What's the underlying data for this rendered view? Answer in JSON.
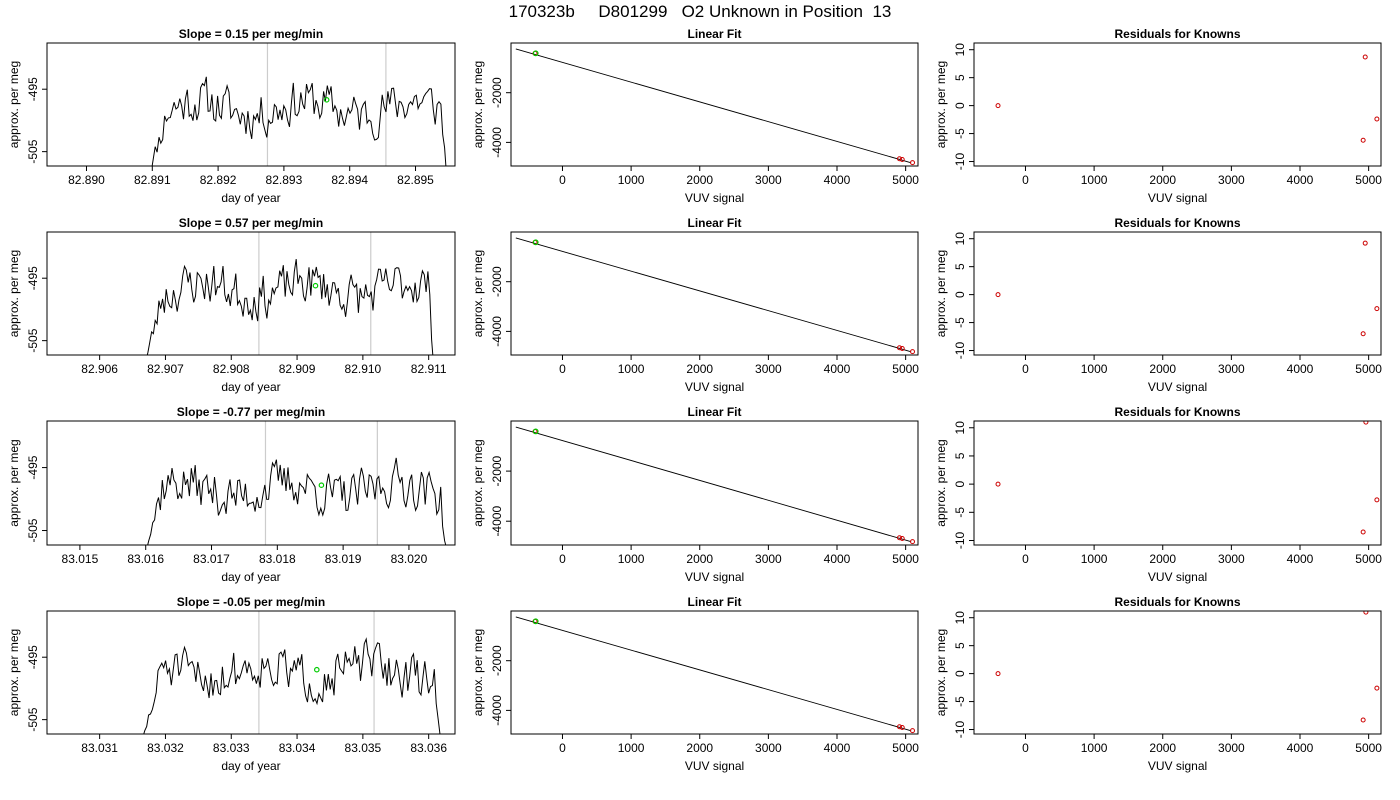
{
  "figure": {
    "title": "170323b     D801299   O2 Unknown in Position  13"
  },
  "colors": {
    "trace": "#000000",
    "boundary": "#cccccc",
    "unknown_point": "#00cc00",
    "standard_point": "#cc0000",
    "frame": "#000000"
  },
  "chart_data": [
    {
      "type": "line",
      "row": 1,
      "col": 1,
      "title": "Slope =  0.15  per meg/min",
      "xlabel": "day of year",
      "ylabel": "approx. per meg",
      "xlim": [
        82.8894,
        82.8956
      ],
      "ylim": [
        -507.3,
        -487.6
      ],
      "xticks": [
        82.89,
        82.891,
        82.892,
        82.893,
        82.894,
        82.895
      ],
      "xtick_labels": [
        "82.890",
        "82.891",
        "82.892",
        "82.893",
        "82.894",
        "82.895"
      ],
      "yticks": [
        -495,
        -505
      ],
      "ytick_labels": [
        "-495",
        "-505"
      ],
      "x_start": 82.8909,
      "x_end": 82.8955,
      "n_points": 160,
      "baseline": -498.0,
      "seed": 11,
      "vlines": [
        82.89275,
        82.89455
      ],
      "highlight_point": {
        "x": 82.89365,
        "y": -496.7
      }
    },
    {
      "type": "line",
      "row": 2,
      "col": 1,
      "title": "Slope =  0.57  per meg/min",
      "xlabel": "day of year",
      "ylabel": "approx. per meg",
      "xlim": [
        82.9052,
        82.9114
      ],
      "ylim": [
        -507.3,
        -487.6
      ],
      "xticks": [
        82.906,
        82.907,
        82.908,
        82.909,
        82.91,
        82.911
      ],
      "xtick_labels": [
        "82.906",
        "82.907",
        "82.908",
        "82.909",
        "82.910",
        "82.911"
      ],
      "yticks": [
        -495,
        -505
      ],
      "ytick_labels": [
        "-495",
        "-505"
      ],
      "x_start": 82.90665,
      "x_end": 82.9111,
      "n_points": 160,
      "baseline": -496.8,
      "seed": 23,
      "vlines": [
        82.90842,
        82.91012
      ],
      "highlight_point": {
        "x": 82.90928,
        "y": -496.2
      }
    },
    {
      "type": "line",
      "row": 3,
      "col": 1,
      "title": "Slope =  -0.77  per meg/min",
      "xlabel": "day of year",
      "ylabel": "approx. per meg",
      "xlim": [
        83.0145,
        83.0207
      ],
      "ylim": [
        -507.3,
        -487.6
      ],
      "xticks": [
        83.015,
        83.016,
        83.017,
        83.018,
        83.019,
        83.02
      ],
      "xtick_labels": [
        "83.015",
        "83.016",
        "83.017",
        "83.018",
        "83.019",
        "83.020"
      ],
      "yticks": [
        -495,
        -505
      ],
      "ytick_labels": [
        "-495",
        "-505"
      ],
      "x_start": 83.0159,
      "x_end": 83.0206,
      "n_points": 160,
      "baseline": -498.5,
      "seed": 37,
      "vlines": [
        83.01782,
        83.01952
      ],
      "highlight_point": {
        "x": 83.01867,
        "y": -497.8
      }
    },
    {
      "type": "line",
      "row": 4,
      "col": 1,
      "title": "Slope =  -0.05  per meg/min",
      "xlabel": "day of year",
      "ylabel": "approx. per meg",
      "xlim": [
        83.0302,
        83.0364
      ],
      "ylim": [
        -507.3,
        -487.6
      ],
      "xticks": [
        83.031,
        83.032,
        83.033,
        83.034,
        83.035,
        83.036
      ],
      "xtick_labels": [
        "83.031",
        "83.032",
        "83.033",
        "83.034",
        "83.035",
        "83.036"
      ],
      "yticks": [
        -495,
        -505
      ],
      "ytick_labels": [
        "-495",
        "-505"
      ],
      "x_start": 83.0316,
      "x_end": 83.0362,
      "n_points": 160,
      "baseline": -497.3,
      "seed": 51,
      "vlines": [
        83.03342,
        83.03517
      ],
      "highlight_point": {
        "x": 83.0343,
        "y": -497.0
      }
    },
    {
      "type": "scatter",
      "row": 1,
      "col": 2,
      "title": "Linear Fit",
      "xlabel": "VUV signal",
      "ylabel": "approx. per meg",
      "xlim": [
        -750,
        5180
      ],
      "ylim": [
        -4950,
        0
      ],
      "xticks": [
        0,
        1000,
        2000,
        3000,
        4000,
        5000
      ],
      "xtick_labels": [
        "0",
        "1000",
        "2000",
        "3000",
        "4000",
        "5000"
      ],
      "yticks": [
        -2000,
        -4000
      ],
      "ytick_labels": [
        "-2000",
        "-4000"
      ],
      "fit_line": [
        [
          -680,
          -240
        ],
        [
          5080,
          -4820
        ]
      ],
      "standards": [
        [
          -400,
          -420
        ],
        [
          4910,
          -4660
        ],
        [
          4950,
          -4690
        ],
        [
          5100,
          -4815
        ]
      ],
      "unknown": [
        [
          -390,
          -415
        ]
      ]
    },
    {
      "type": "scatter",
      "row": 2,
      "col": 2,
      "title": "Linear Fit",
      "xlabel": "VUV signal",
      "ylabel": "approx. per meg",
      "xlim": [
        -750,
        5180
      ],
      "ylim": [
        -4950,
        0
      ],
      "xticks": [
        0,
        1000,
        2000,
        3000,
        4000,
        5000
      ],
      "xtick_labels": [
        "0",
        "1000",
        "2000",
        "3000",
        "4000",
        "5000"
      ],
      "yticks": [
        -2000,
        -4000
      ],
      "ytick_labels": [
        "-2000",
        "-4000"
      ],
      "fit_line": [
        [
          -680,
          -240
        ],
        [
          5080,
          -4820
        ]
      ],
      "standards": [
        [
          -400,
          -420
        ],
        [
          4910,
          -4660
        ],
        [
          4950,
          -4690
        ],
        [
          5100,
          -4815
        ]
      ],
      "unknown": [
        [
          -390,
          -415
        ]
      ]
    },
    {
      "type": "scatter",
      "row": 3,
      "col": 2,
      "title": "Linear Fit",
      "xlabel": "VUV signal",
      "ylabel": "approx. per meg",
      "xlim": [
        -750,
        5180
      ],
      "ylim": [
        -4950,
        0
      ],
      "xticks": [
        0,
        1000,
        2000,
        3000,
        4000,
        5000
      ],
      "xtick_labels": [
        "0",
        "1000",
        "2000",
        "3000",
        "4000",
        "5000"
      ],
      "yticks": [
        -2000,
        -4000
      ],
      "ytick_labels": [
        "-2000",
        "-4000"
      ],
      "fit_line": [
        [
          -680,
          -240
        ],
        [
          5080,
          -4820
        ]
      ],
      "standards": [
        [
          -400,
          -420
        ],
        [
          4910,
          -4660
        ],
        [
          4950,
          -4690
        ],
        [
          5100,
          -4815
        ]
      ],
      "unknown": [
        [
          -390,
          -415
        ]
      ]
    },
    {
      "type": "scatter",
      "row": 4,
      "col": 2,
      "title": "Linear Fit",
      "xlabel": "VUV signal",
      "ylabel": "approx. per meg",
      "xlim": [
        -750,
        5180
      ],
      "ylim": [
        -4950,
        0
      ],
      "xticks": [
        0,
        1000,
        2000,
        3000,
        4000,
        5000
      ],
      "xtick_labels": [
        "0",
        "1000",
        "2000",
        "3000",
        "4000",
        "5000"
      ],
      "yticks": [
        -2000,
        -4000
      ],
      "ytick_labels": [
        "-2000",
        "-4000"
      ],
      "fit_line": [
        [
          -680,
          -240
        ],
        [
          5080,
          -4820
        ]
      ],
      "standards": [
        [
          -400,
          -420
        ],
        [
          4910,
          -4660
        ],
        [
          4950,
          -4690
        ],
        [
          5100,
          -4815
        ]
      ],
      "unknown": [
        [
          -390,
          -415
        ]
      ]
    },
    {
      "type": "scatter",
      "row": 1,
      "col": 3,
      "title": "Residuals for Knowns",
      "xlabel": "VUV signal",
      "ylabel": "approx. per meg",
      "xlim": [
        -750,
        5180
      ],
      "ylim": [
        -10.8,
        11.2
      ],
      "xticks": [
        0,
        1000,
        2000,
        3000,
        4000,
        5000
      ],
      "xtick_labels": [
        "0",
        "1000",
        "2000",
        "3000",
        "4000",
        "5000"
      ],
      "yticks": [
        10,
        5,
        0,
        -5,
        -10
      ],
      "ytick_labels": [
        "10",
        "5",
        "0",
        "-5",
        "-10"
      ],
      "points": [
        [
          -400,
          0.0
        ],
        [
          4950,
          8.7
        ],
        [
          4920,
          -6.2
        ],
        [
          5120,
          -2.4
        ]
      ]
    },
    {
      "type": "scatter",
      "row": 2,
      "col": 3,
      "title": "Residuals for Knowns",
      "xlabel": "VUV signal",
      "ylabel": "approx. per meg",
      "xlim": [
        -750,
        5180
      ],
      "ylim": [
        -10.8,
        11.2
      ],
      "xticks": [
        0,
        1000,
        2000,
        3000,
        4000,
        5000
      ],
      "xtick_labels": [
        "0",
        "1000",
        "2000",
        "3000",
        "4000",
        "5000"
      ],
      "yticks": [
        10,
        5,
        0,
        -5,
        -10
      ],
      "ytick_labels": [
        "10",
        "5",
        "0",
        "-5",
        "-10"
      ],
      "points": [
        [
          -400,
          0.0
        ],
        [
          4950,
          9.2
        ],
        [
          4920,
          -7.0
        ],
        [
          5120,
          -2.5
        ]
      ]
    },
    {
      "type": "scatter",
      "row": 3,
      "col": 3,
      "title": "Residuals for Knowns",
      "xlabel": "VUV signal",
      "ylabel": "approx. per meg",
      "xlim": [
        -750,
        5180
      ],
      "ylim": [
        -10.8,
        11.2
      ],
      "xticks": [
        0,
        1000,
        2000,
        3000,
        4000,
        5000
      ],
      "xtick_labels": [
        "0",
        "1000",
        "2000",
        "3000",
        "4000",
        "5000"
      ],
      "yticks": [
        10,
        5,
        0,
        -5,
        -10
      ],
      "ytick_labels": [
        "10",
        "5",
        "0",
        "-5",
        "-10"
      ],
      "points": [
        [
          -400,
          0.0
        ],
        [
          4920,
          -8.5
        ],
        [
          5120,
          -2.8
        ],
        [
          4960,
          11.0
        ]
      ]
    },
    {
      "type": "scatter",
      "row": 4,
      "col": 3,
      "title": "Residuals for Knowns",
      "xlabel": "VUV signal",
      "ylabel": "approx. per meg",
      "xlim": [
        -750,
        5180
      ],
      "ylim": [
        -10.8,
        11.2
      ],
      "xticks": [
        0,
        1000,
        2000,
        3000,
        4000,
        5000
      ],
      "xtick_labels": [
        "0",
        "1000",
        "2000",
        "3000",
        "4000",
        "5000"
      ],
      "yticks": [
        10,
        5,
        0,
        -5,
        -10
      ],
      "ytick_labels": [
        "10",
        "5",
        "0",
        "-5",
        "-10"
      ],
      "points": [
        [
          -400,
          0.0
        ],
        [
          4920,
          -8.3
        ],
        [
          5120,
          -2.6
        ],
        [
          4960,
          11.0
        ]
      ]
    }
  ]
}
